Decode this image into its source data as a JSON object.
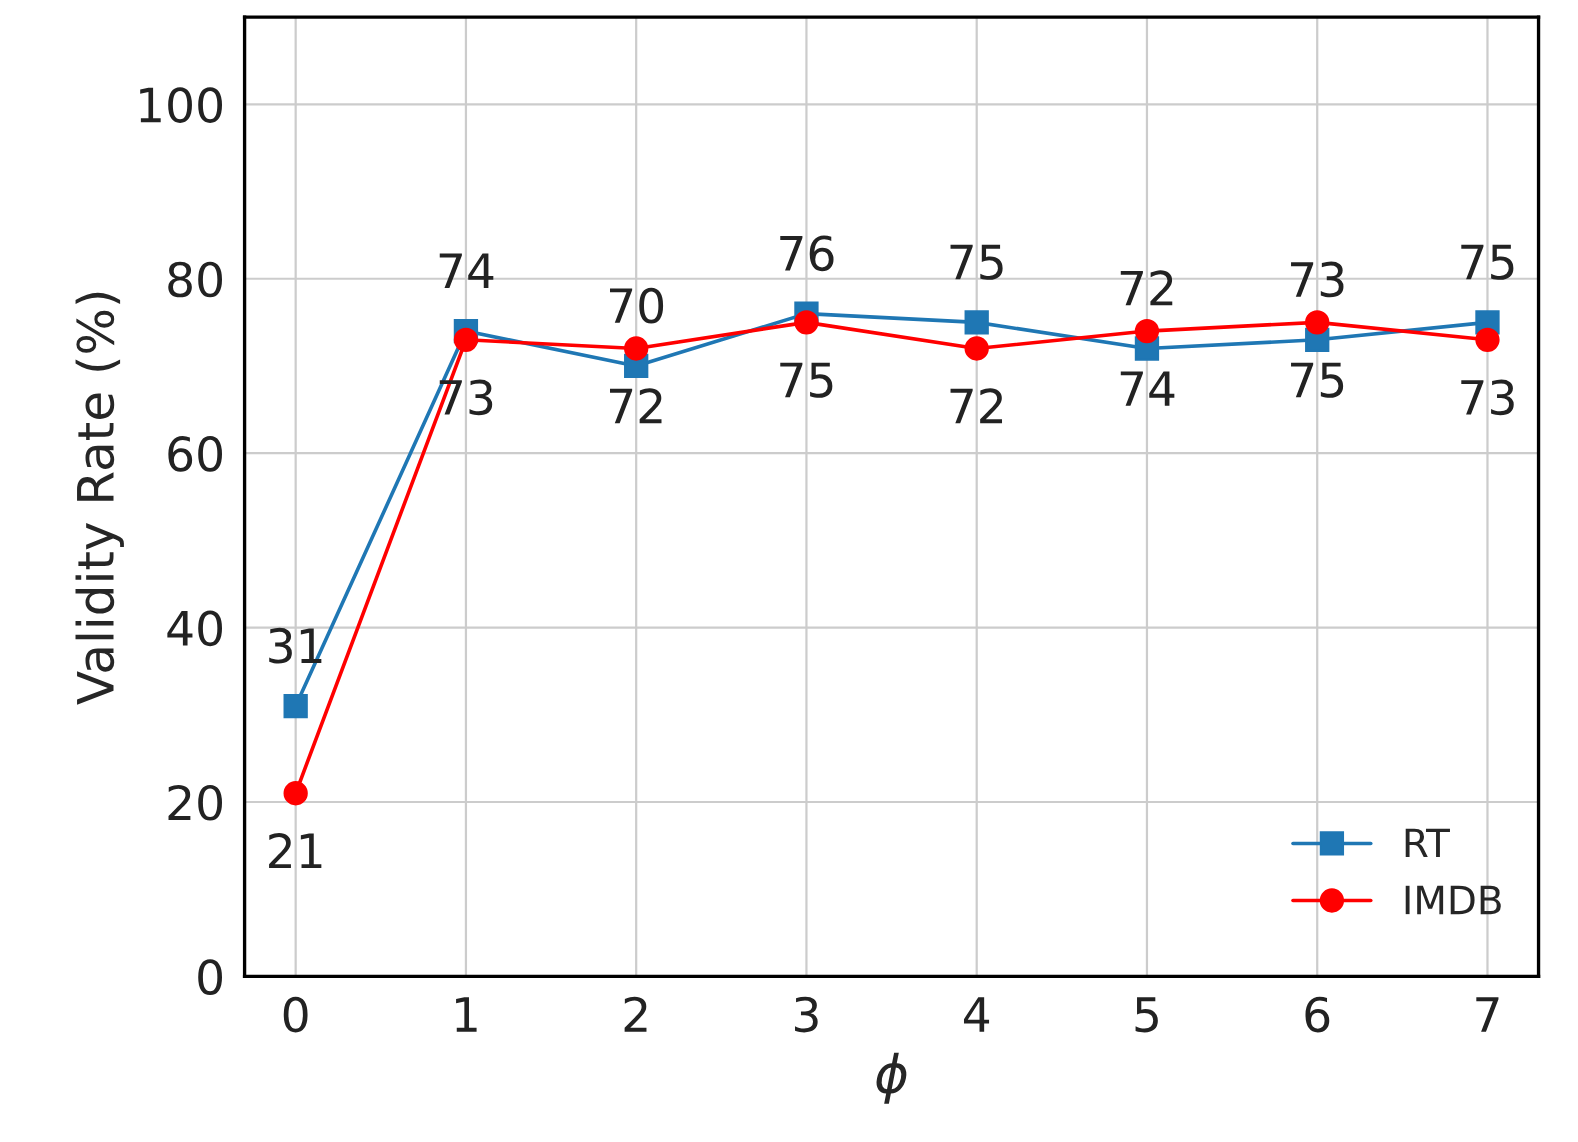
{
  "chart_data": {
    "type": "line",
    "xlabel": "ϕ",
    "ylabel": "Validity Rate (%)",
    "x": [
      0,
      1,
      2,
      3,
      4,
      5,
      6,
      7
    ],
    "series": [
      {
        "name": "RT",
        "color": "#1f77b4",
        "marker": "square",
        "values": [
          31,
          74,
          70,
          76,
          75,
          72,
          73,
          75
        ]
      },
      {
        "name": "IMDB",
        "color": "#ff0000",
        "marker": "circle",
        "values": [
          21,
          73,
          72,
          75,
          72,
          74,
          75,
          73
        ]
      }
    ],
    "xlim": [
      -0.3,
      7.3
    ],
    "xticks": [
      0,
      1,
      2,
      3,
      4,
      5,
      6,
      7
    ],
    "ylim": [
      0,
      110
    ],
    "yticks": [
      0,
      20,
      40,
      60,
      80,
      100
    ],
    "grid": true,
    "legend": "bottom right",
    "data_labels": true,
    "line_style": "solid"
  }
}
